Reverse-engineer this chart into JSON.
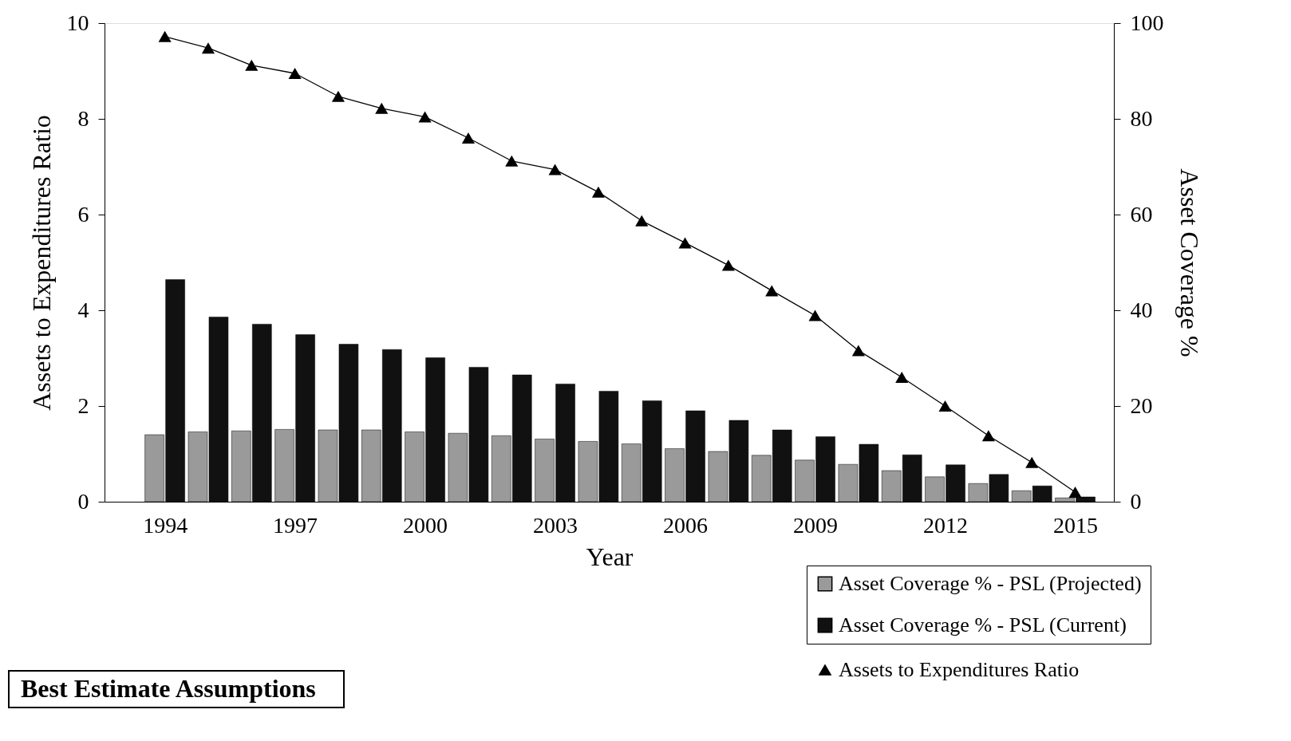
{
  "chart_data": {
    "type": "bar",
    "x": [
      1994,
      1995,
      1996,
      1997,
      1998,
      1999,
      2000,
      2001,
      2002,
      2003,
      2004,
      2005,
      2006,
      2007,
      2008,
      2009,
      2010,
      2011,
      2012,
      2013,
      2014,
      2015
    ],
    "series": [
      {
        "name": "Asset Coverage % - PSL (Projected)",
        "color": "#9a9a9a",
        "axis": "y2",
        "values": [
          14,
          14.6,
          14.8,
          15.1,
          15,
          15,
          14.6,
          14.3,
          13.8,
          13.1,
          12.6,
          12.1,
          11.1,
          10.5,
          9.7,
          8.7,
          7.8,
          6.5,
          5.2,
          3.8,
          2.3,
          0.8
        ]
      },
      {
        "name": "Asset Coverage % - PSL (Current)",
        "color": "#111111",
        "axis": "y2",
        "values": [
          46.4,
          38.6,
          37.1,
          34.9,
          32.9,
          31.8,
          30.1,
          28.1,
          26.5,
          24.6,
          23.1,
          21.1,
          19,
          17,
          15,
          13.6,
          12,
          9.8,
          7.7,
          5.7,
          3.3,
          1
        ]
      },
      {
        "name": "Assets to Expenditures Ratio",
        "color": "#000000",
        "type": "line",
        "marker": "triangle",
        "values": [
          9.72,
          9.48,
          9.12,
          8.95,
          8.47,
          8.22,
          8.04,
          7.6,
          7.12,
          6.94,
          6.47,
          5.87,
          5.41,
          4.94,
          4.41,
          3.89,
          3.16,
          2.6,
          2,
          1.38,
          0.82,
          0.2
        ]
      }
    ],
    "xlabel": "Year",
    "ylabel": "Assets to Expenditures Ratio",
    "y2label": "Asset Coverage %",
    "xlim": [
      1992.7,
      2015.8
    ],
    "xticks": [
      1994,
      1997,
      2000,
      2003,
      2006,
      2009,
      2012,
      2015
    ],
    "ylim": [
      0,
      10
    ],
    "yticks": [
      0,
      2,
      4,
      6,
      8,
      10
    ],
    "y2lim": [
      0,
      100
    ],
    "y2ticks": [
      0,
      20,
      40,
      60,
      80,
      100
    ],
    "annotations": [
      "Best Estimate Assumptions"
    ],
    "legend": "bottom right",
    "grid": false
  }
}
